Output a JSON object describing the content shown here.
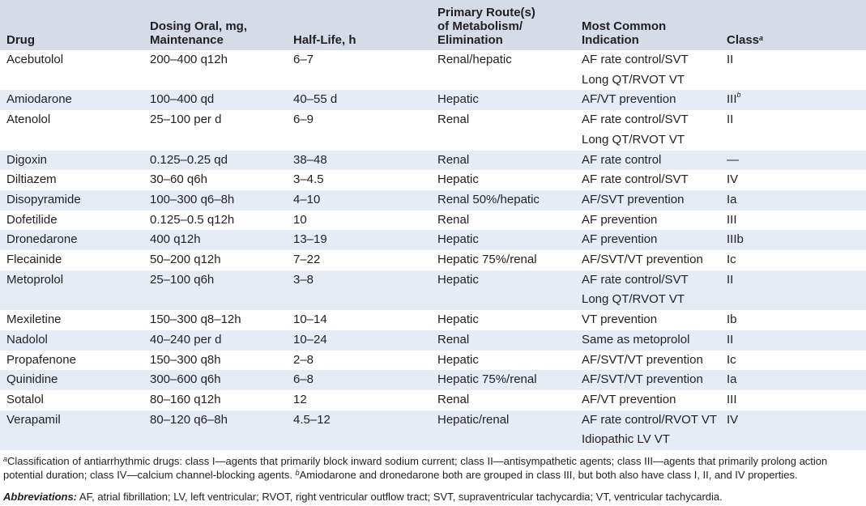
{
  "table": {
    "header": [
      "Drug",
      [
        "Dosing Oral, mg,",
        "Maintenance"
      ],
      "Half-Life, h",
      [
        "Primary Route(s)",
        "of Metabolism/",
        "Elimination"
      ],
      [
        "Most Common",
        "Indication"
      ],
      {
        "text": "Class",
        "sup": "a"
      }
    ],
    "rows": [
      [
        "Acebutolol",
        "200–400 q12h",
        "6–7",
        "Renal/hepatic",
        [
          "AF rate control/SVT",
          "Long QT/RVOT VT"
        ],
        "II"
      ],
      [
        "Amiodarone",
        "100–400 qd",
        "40–55 d",
        "Hepatic",
        [
          "AF/VT prevention"
        ],
        {
          "text": "III",
          "sup": "b"
        }
      ],
      [
        "Atenolol",
        "25–100 per d",
        "6–9",
        "Renal",
        [
          "AF rate control/SVT",
          "Long QT/RVOT VT"
        ],
        "II"
      ],
      [
        "Digoxin",
        "0.125–0.25 qd",
        "38–48",
        "Renal",
        [
          "AF rate control"
        ],
        "—"
      ],
      [
        "Diltiazem",
        "30–60 q6h",
        "3–4.5",
        "Hepatic",
        [
          "AF rate control/SVT"
        ],
        "IV"
      ],
      [
        "Disopyramide",
        "100–300 q6–8h",
        "4–10",
        "Renal 50%/hepatic",
        [
          "AF/SVT prevention"
        ],
        "Ia"
      ],
      [
        "Dofetilide",
        "0.125–0.5 q12h",
        "10",
        "Renal",
        [
          "AF prevention"
        ],
        "III"
      ],
      [
        "Dronedarone",
        "400 q12h",
        "13–19",
        "Hepatic",
        [
          "AF prevention"
        ],
        "IIIb"
      ],
      [
        "Flecainide",
        "50–200 q12h",
        "7–22",
        "Hepatic 75%/renal",
        [
          "AF/SVT/VT prevention"
        ],
        "Ic"
      ],
      [
        "Metoprolol",
        "25–100 q6h",
        "3–8",
        "Hepatic",
        [
          "AF rate control/SVT",
          "Long QT/RVOT VT"
        ],
        "II"
      ],
      [
        "Mexiletine",
        "150–300 q8–12h",
        "10–14",
        "Hepatic",
        [
          "VT prevention"
        ],
        "Ib"
      ],
      [
        "Nadolol",
        "40–240 per d",
        "10–24",
        "Renal",
        [
          "Same as metoprolol"
        ],
        "II"
      ],
      [
        "Propafenone",
        "150–300 q8h",
        "2–8",
        "Hepatic",
        [
          "AF/SVT/VT prevention"
        ],
        "Ic"
      ],
      [
        "Quinidine",
        "300–600 q6h",
        "6–8",
        "Hepatic 75%/renal",
        [
          "AF/SVT/VT prevention"
        ],
        "Ia"
      ],
      [
        "Sotalol",
        "80–160 q12h",
        "12",
        "Renal",
        [
          "AF/VT prevention"
        ],
        "III"
      ],
      [
        "Verapamil",
        "80–120 q6–8h",
        "4.5–12",
        "Hepatic/renal",
        [
          "AF rate control/RVOT VT",
          "Idiopathic LV VT"
        ],
        "IV"
      ]
    ]
  },
  "footnotes": [
    {
      "mark": "a",
      "text": "Classification of antiarrhythmic drugs: class I—agents that primarily block inward sodium current; class II—antisympathetic agents; class III—agents that primarily prolong action potential duration; class IV—calcium channel-blocking agents."
    },
    {
      "mark": "b",
      "text": "Amiodarone and dronedarone both are grouped in class III, but both also have class I, II, and IV properties."
    }
  ],
  "abbreviations": {
    "label": "Abbreviations:",
    "text": "AF, atrial fibrillation; LV, left ventricular; RVOT, right ventricular outflow tract; SVT, supraventricular tachycardia; VT, ventricular tachycardia."
  }
}
